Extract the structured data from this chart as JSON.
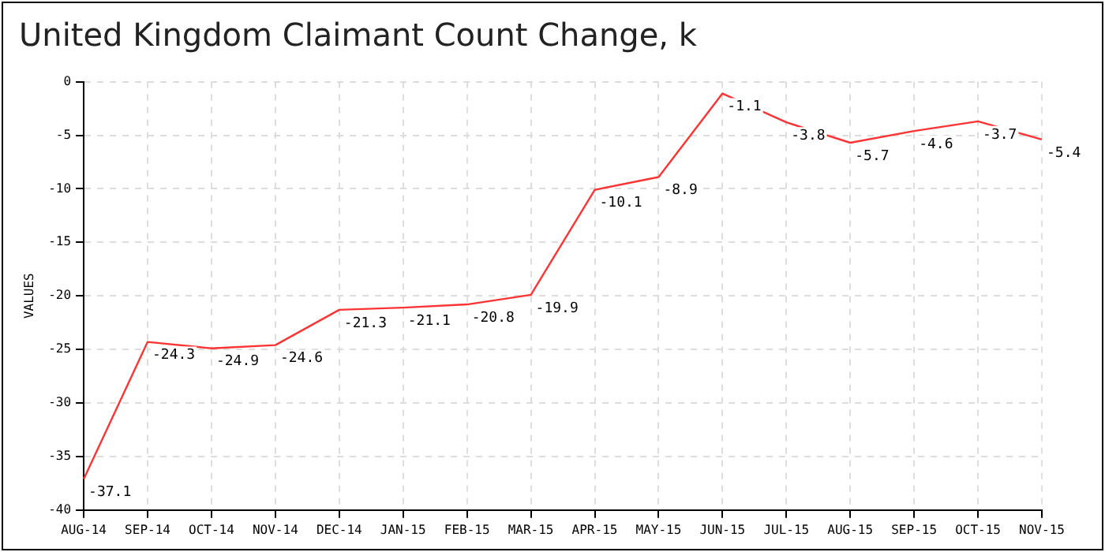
{
  "chart_data": {
    "type": "line",
    "title": "United Kingdom Claimant Count Change, k",
    "ylabel": "VALUES",
    "categories": [
      "AUG-14",
      "SEP-14",
      "OCT-14",
      "NOV-14",
      "DEC-14",
      "JAN-15",
      "FEB-15",
      "MAR-15",
      "APR-15",
      "MAY-15",
      "JUN-15",
      "JUL-15",
      "AUG-15",
      "SEP-15",
      "OCT-15",
      "NOV-15"
    ],
    "series": [
      {
        "color": "#ff3333",
        "values": [
          -37.1,
          -24.3,
          -24.9,
          -24.6,
          -21.3,
          -21.1,
          -20.8,
          -19.9,
          -10.1,
          -8.9,
          -1.1,
          -3.8,
          -5.7,
          -4.6,
          -3.7,
          -5.4
        ]
      }
    ],
    "ylim": [
      -40,
      0
    ],
    "yticks": [
      -40,
      -35,
      -30,
      -25,
      -20,
      -15,
      -10,
      -5,
      0
    ],
    "grid": true,
    "data_labels": true,
    "marker": "none",
    "line_style": "solid"
  }
}
